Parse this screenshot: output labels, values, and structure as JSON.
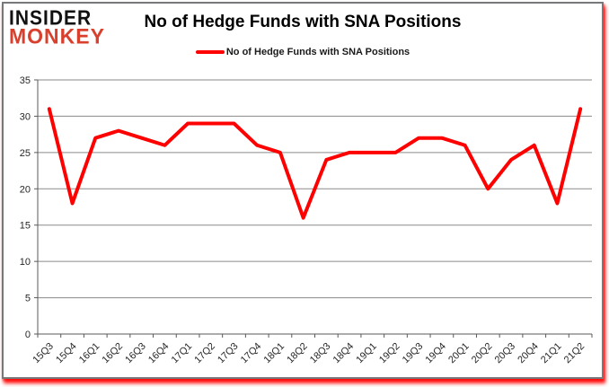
{
  "brand": {
    "line1": "INSIDER",
    "line2": "MONKEY"
  },
  "title": "No of Hedge Funds with SNA Positions",
  "legend": {
    "label": "No of Hedge Funds with SNA Positions"
  },
  "colors": {
    "series": "#ff0000",
    "grid": "#8a8a8a",
    "axis": "#595959",
    "tick_text": "#262626",
    "title_text": "#000000",
    "brand_primary": "#121212",
    "brand_accent": "#d8402d",
    "card_border": "#77787a",
    "shadow": "#ff0000",
    "background": "#ffffff"
  },
  "chart_data": {
    "type": "line",
    "title": "No of Hedge Funds with SNA Positions",
    "categories": [
      "15Q3",
      "15Q4",
      "16Q1",
      "16Q2",
      "16Q3",
      "16Q4",
      "17Q1",
      "17Q2",
      "17Q3",
      "17Q4",
      "18Q1",
      "18Q2",
      "18Q3",
      "18Q4",
      "19Q1",
      "19Q2",
      "19Q3",
      "19Q4",
      "20Q1",
      "20Q2",
      "20Q3",
      "20Q4",
      "21Q1",
      "21Q2"
    ],
    "series": [
      {
        "name": "No of Hedge Funds with SNA Positions",
        "color": "#ff0000",
        "values": [
          31,
          18,
          27,
          28,
          27,
          26,
          29,
          29,
          29,
          26,
          25,
          16,
          24,
          25,
          25,
          25,
          27,
          27,
          26,
          20,
          24,
          26,
          18,
          31
        ]
      }
    ],
    "xlabel": "",
    "ylabel": "",
    "ylim": [
      0,
      35
    ],
    "ytick_step": 5,
    "grid": true,
    "legend_position": "top-center"
  }
}
